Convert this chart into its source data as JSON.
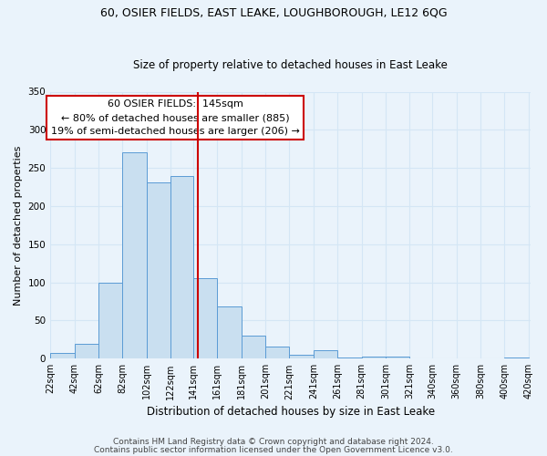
{
  "title_line1": "60, OSIER FIELDS, EAST LEAKE, LOUGHBOROUGH, LE12 6QG",
  "title_line2": "Size of property relative to detached houses in East Leake",
  "xlabel": "Distribution of detached houses by size in East Leake",
  "ylabel": "Number of detached properties",
  "bar_left_edges": [
    22,
    42,
    62,
    82,
    102,
    122,
    141,
    161,
    181,
    201,
    221,
    241,
    261,
    281,
    301,
    321,
    340,
    360,
    380,
    400
  ],
  "bar_widths": [
    20,
    20,
    20,
    20,
    20,
    19,
    20,
    20,
    20,
    20,
    20,
    20,
    20,
    20,
    20,
    19,
    20,
    20,
    20,
    20
  ],
  "bar_heights": [
    7,
    20,
    99,
    271,
    231,
    240,
    106,
    69,
    30,
    16,
    5,
    11,
    2,
    3,
    3,
    0,
    0,
    0,
    0,
    2
  ],
  "bar_color": "#c9dff0",
  "bar_edgecolor": "#5b9bd5",
  "tick_labels": [
    "22sqm",
    "42sqm",
    "62sqm",
    "82sqm",
    "102sqm",
    "122sqm",
    "141sqm",
    "161sqm",
    "181sqm",
    "201sqm",
    "221sqm",
    "241sqm",
    "261sqm",
    "281sqm",
    "301sqm",
    "321sqm",
    "340sqm",
    "360sqm",
    "380sqm",
    "400sqm",
    "420sqm"
  ],
  "ylim": [
    0,
    350
  ],
  "yticks": [
    0,
    50,
    100,
    150,
    200,
    250,
    300,
    350
  ],
  "property_size": 145,
  "vline_color": "#cc0000",
  "annotation_text_line1": "60 OSIER FIELDS:  145sqm",
  "annotation_text_line2": "← 80% of detached houses are smaller (885)",
  "annotation_text_line3": "19% of semi-detached houses are larger (206) →",
  "annotation_box_color": "#ffffff",
  "annotation_box_edgecolor": "#cc0000",
  "bg_color": "#eaf3fb",
  "grid_color": "#d4e6f5",
  "footer_line1": "Contains HM Land Registry data © Crown copyright and database right 2024.",
  "footer_line2": "Contains public sector information licensed under the Open Government Licence v3.0.",
  "title1_fontsize": 9,
  "title2_fontsize": 8.5,
  "xlabel_fontsize": 8.5,
  "ylabel_fontsize": 8,
  "tick_fontsize": 7,
  "annotation_fontsize": 8,
  "footer_fontsize": 6.5
}
